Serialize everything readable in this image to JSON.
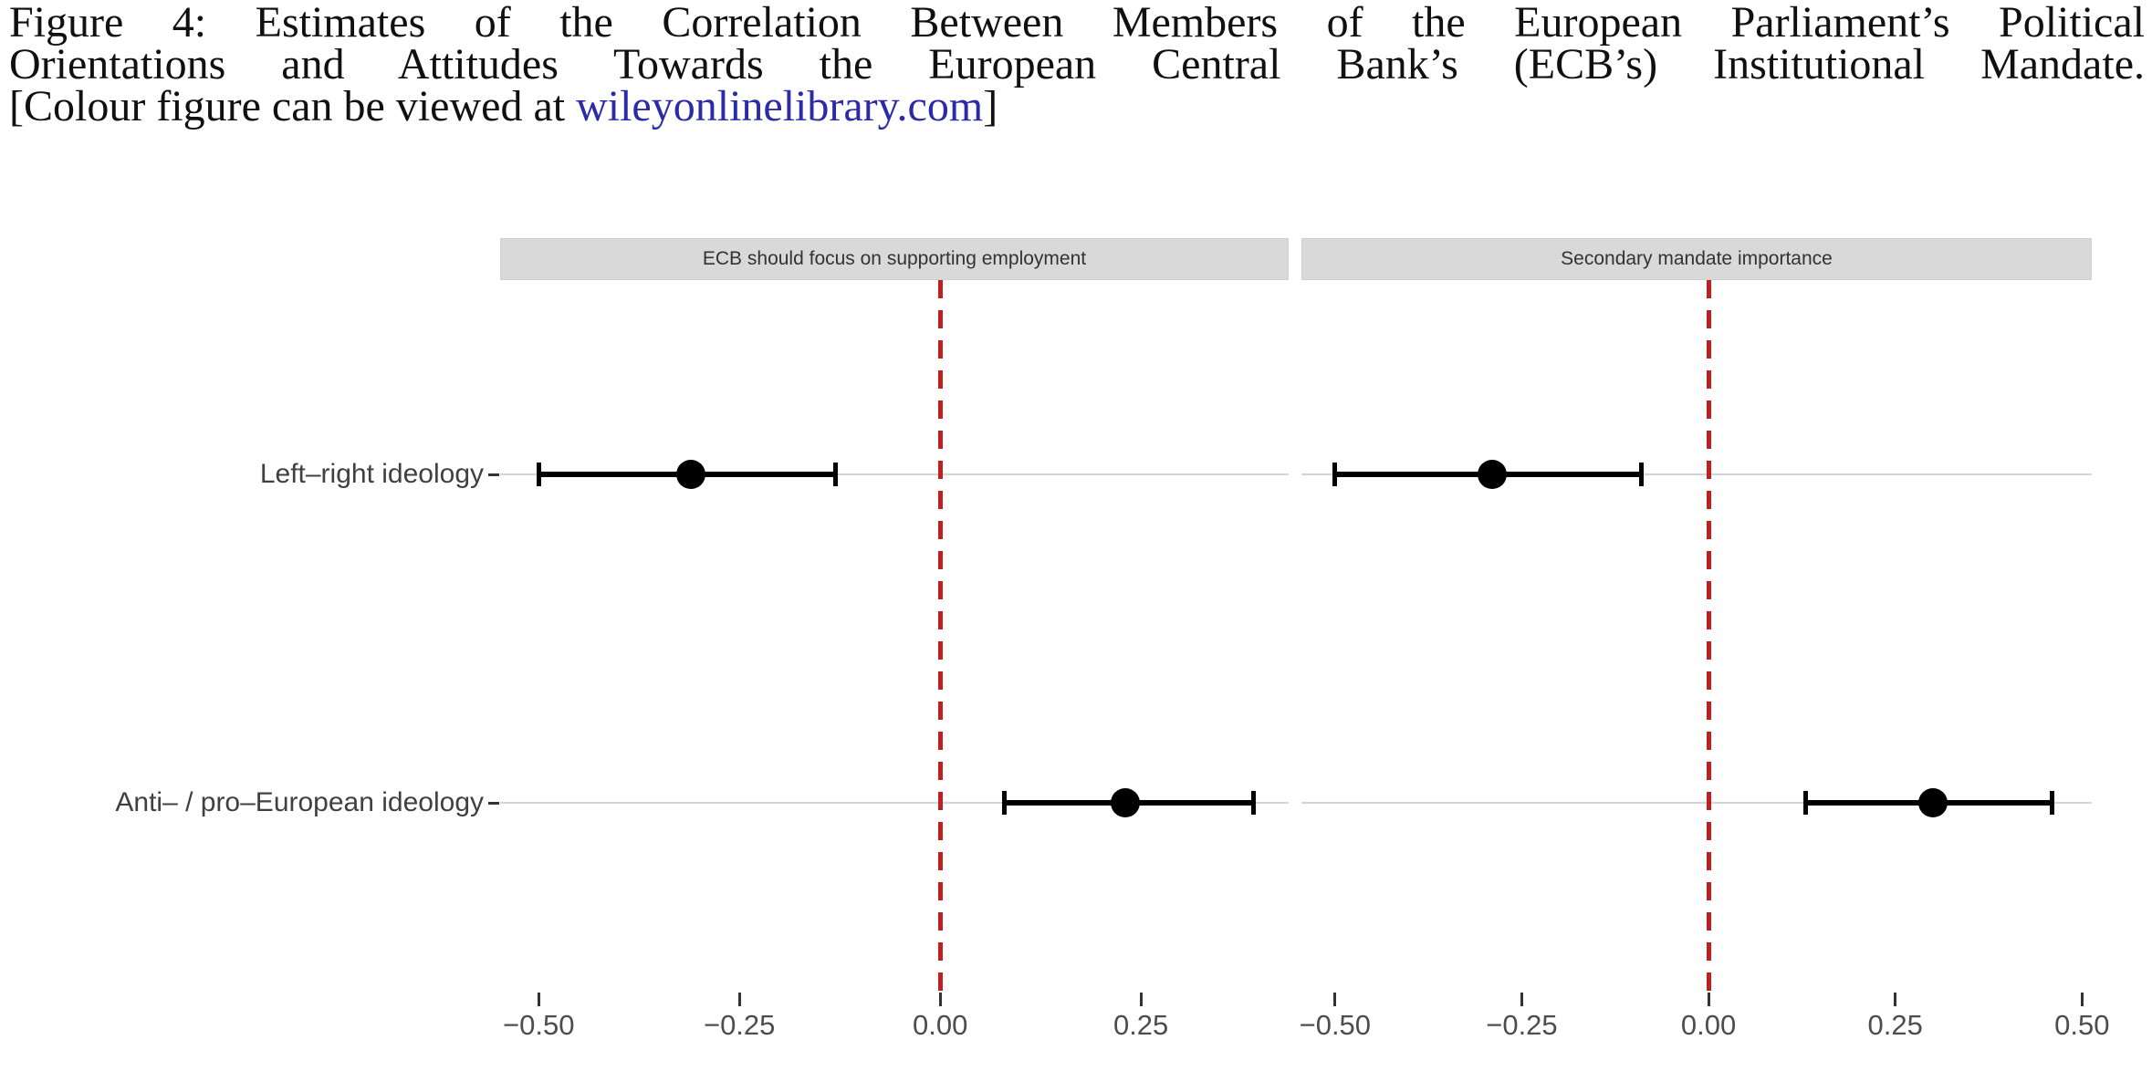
{
  "caption": {
    "line1": "Figure 4: Estimates of the Correlation Between Members of the European Parliament’s Political",
    "line2": "Orientations and Attitudes Towards the European Central Bank’s (ECB’s) Institutional Mandate.",
    "line3_prefix": "[Colour figure can be viewed at ",
    "link_text": "wileyonlinelibrary.com",
    "line3_suffix": "]",
    "link_color": "#2b2ba8"
  },
  "chart_data": {
    "type": "dot-whisker",
    "title": "",
    "xlabel": "",
    "ylabel": "",
    "categories": [
      "Left–right ideology",
      "Anti– / pro–European ideology"
    ],
    "x_ticks": [
      -0.5,
      -0.25,
      0,
      0.25,
      0.5
    ],
    "x_tick_labels": [
      "−0.50",
      "−0.25",
      "0.00",
      "0.25",
      "0.50"
    ],
    "zero_line": {
      "value": 0,
      "style": "dashed",
      "color": "#c02020"
    },
    "facets": [
      {
        "label": "ECB should focus on supporting employment",
        "xlim": [
          -0.548,
          0.434
        ],
        "points": [
          {
            "category": "Left–right ideology",
            "estimate": -0.31,
            "ci_low": -0.5,
            "ci_high": -0.13
          },
          {
            "category": "Anti– / pro–European ideology",
            "estimate": 0.23,
            "ci_low": 0.08,
            "ci_high": 0.39
          }
        ]
      },
      {
        "label": "Secondary mandate importance",
        "xlim": [
          -0.545,
          0.513
        ],
        "points": [
          {
            "category": "Left–right ideology",
            "estimate": -0.29,
            "ci_low": -0.5,
            "ci_high": -0.09
          },
          {
            "category": "Anti– / pro–European ideology",
            "estimate": 0.3,
            "ci_low": 0.13,
            "ci_high": 0.46
          }
        ]
      }
    ],
    "style": {
      "point_color": "#000000",
      "ci_color": "#000000",
      "grid_color": "#d4d4d4",
      "strip_bg": "#d9d9d9",
      "axis_text_color": "#4d4d4d"
    }
  }
}
